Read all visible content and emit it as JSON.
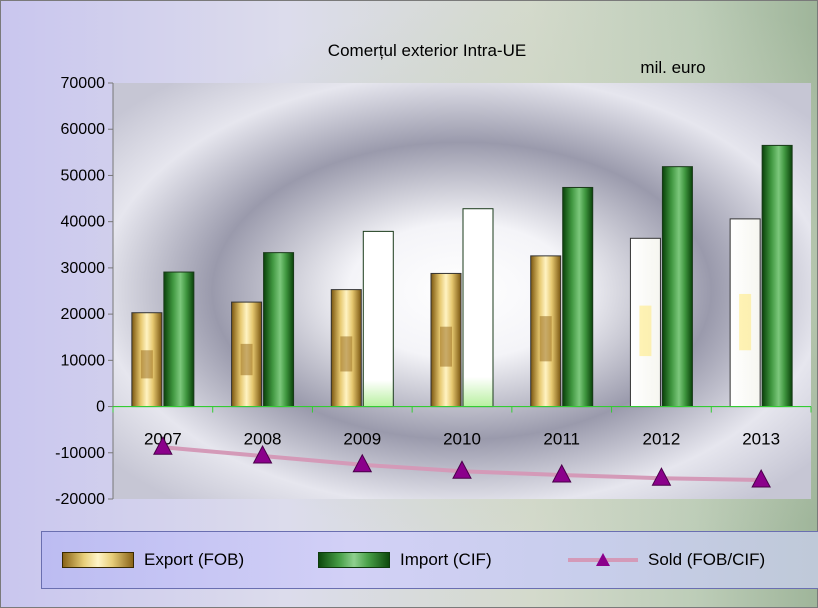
{
  "chart_data": {
    "type": "bar",
    "title": "Comerțul exterior Intra-UE",
    "unit": "mil. euro",
    "categories": [
      "2007",
      "2008",
      "2009",
      "2010",
      "2011",
      "2012",
      "2013"
    ],
    "series": [
      {
        "name": "Export (FOB)",
        "type": "bar",
        "values": [
          20300,
          22600,
          25300,
          28800,
          32600,
          36400,
          40600
        ]
      },
      {
        "name": "Import (CIF)",
        "type": "bar",
        "values": [
          29100,
          33300,
          37900,
          42800,
          47400,
          51900,
          56500
        ]
      },
      {
        "name": "Sold (FOB/CIF)",
        "type": "line",
        "values": [
          -8800,
          -10700,
          -12600,
          -14000,
          -14800,
          -15500,
          -15900
        ]
      }
    ],
    "ylim": [
      -20000,
      70000
    ],
    "yticks": [
      "70000",
      "60000",
      "50000",
      "40000",
      "30000",
      "20000",
      "10000",
      "0",
      "-10000",
      "-20000"
    ],
    "legend_position": "bottom",
    "colors": {
      "export": "#d8b45a",
      "import": "#2e7d2e",
      "sold_line": "#d49ab8",
      "sold_marker": "#8b008b",
      "zero_line": "#33cc33"
    }
  }
}
